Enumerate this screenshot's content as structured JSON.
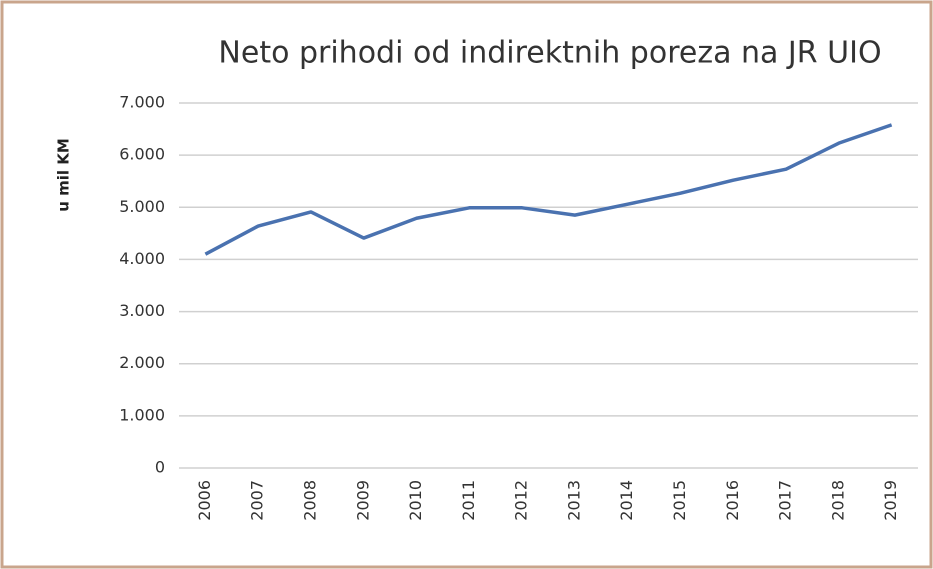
{
  "chart_data": {
    "type": "line",
    "title": "Neto prihodi od indirektnih poreza na JR UIO",
    "y_label": "u mil KM",
    "categories": [
      "2006",
      "2007",
      "2008",
      "2009",
      "2010",
      "2011",
      "2012",
      "2013",
      "2014",
      "2015",
      "2016",
      "2017",
      "2018",
      "2019"
    ],
    "series": [
      {
        "name": "Neto prihodi",
        "color": "#4a72b0",
        "values": [
          4100,
          4640,
          4910,
          4410,
          4790,
          4990,
          4990,
          4850,
          5060,
          5270,
          5520,
          5730,
          6230,
          6580
        ]
      }
    ],
    "ylim": [
      0,
      7000
    ],
    "yticks": [
      0,
      {
        "value": 1000,
        "label": "1.000"
      },
      {
        "value": 2000,
        "label": "2.000"
      },
      {
        "value": 3000,
        "label": "3.000"
      },
      {
        "value": 4000,
        "label": "4.000"
      },
      {
        "value": 5000,
        "label": "5.000"
      },
      {
        "value": 6000,
        "label": "6.000"
      },
      {
        "value": 7000,
        "label": "7.000"
      }
    ],
    "grid": true
  }
}
